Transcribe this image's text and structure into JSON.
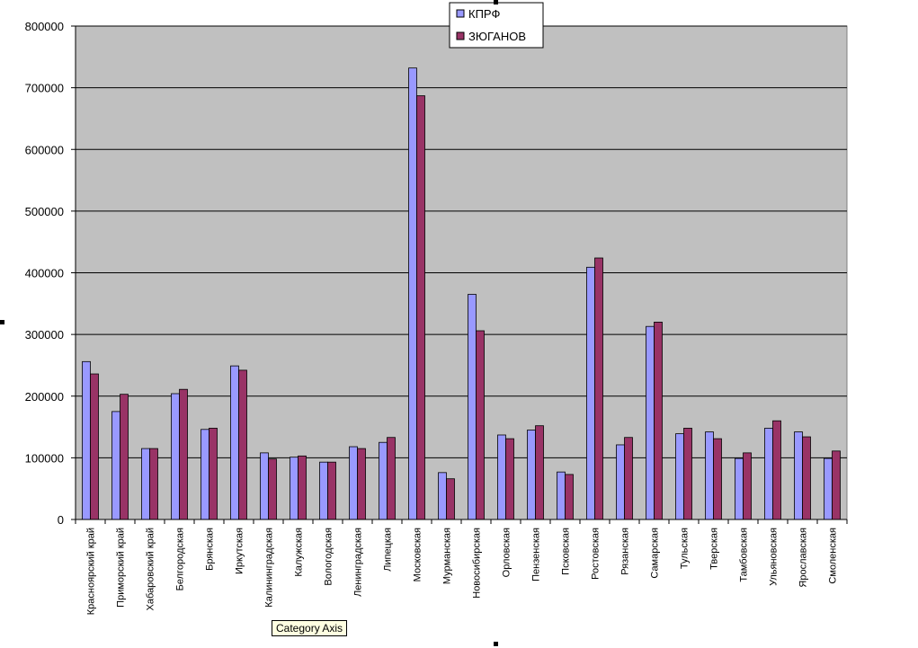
{
  "chart_data": {
    "type": "bar",
    "categories": [
      "Красноярский край",
      "Приморский край",
      "Хабаровский край",
      "Белгородская",
      "Брянская",
      "Иркутская",
      "Калининградская",
      "Калужская",
      "Вологодская",
      "Ленинградская",
      "Липецкая",
      "Московская",
      "Мурманская",
      "Новосибирская",
      "Орловская",
      "Пензенская",
      "Псковская",
      "Ростовская",
      "Рязанская",
      "Самарская",
      "Тульская",
      "Тверская",
      "Тамбовская",
      "Ульяновская",
      "Ярославская",
      "Смоленская"
    ],
    "series": [
      {
        "name": "КПРФ",
        "color": "#9999ff",
        "values": [
          256000,
          175000,
          115000,
          204000,
          146000,
          249000,
          108000,
          101000,
          93000,
          118000,
          125000,
          732000,
          76000,
          365000,
          137000,
          145000,
          77000,
          409000,
          121000,
          313000,
          139000,
          142000,
          99000,
          148000,
          142000,
          99000
        ]
      },
      {
        "name": "ЗЮГАНОВ",
        "color": "#993366",
        "values": [
          236000,
          203000,
          115000,
          211000,
          148000,
          242000,
          98000,
          103000,
          93000,
          115000,
          133000,
          687000,
          66000,
          306000,
          131000,
          152000,
          73000,
          424000,
          133000,
          320000,
          148000,
          131000,
          108000,
          160000,
          134000,
          111000
        ]
      }
    ],
    "yticks": [
      "0",
      "100000",
      "200000",
      "300000",
      "400000",
      "500000",
      "600000",
      "700000",
      "800000"
    ],
    "ylim": [
      0,
      800000
    ],
    "plot_background": "#c0c0c0",
    "grid": true,
    "legend_position": "top"
  },
  "tooltip": "Category Axis"
}
